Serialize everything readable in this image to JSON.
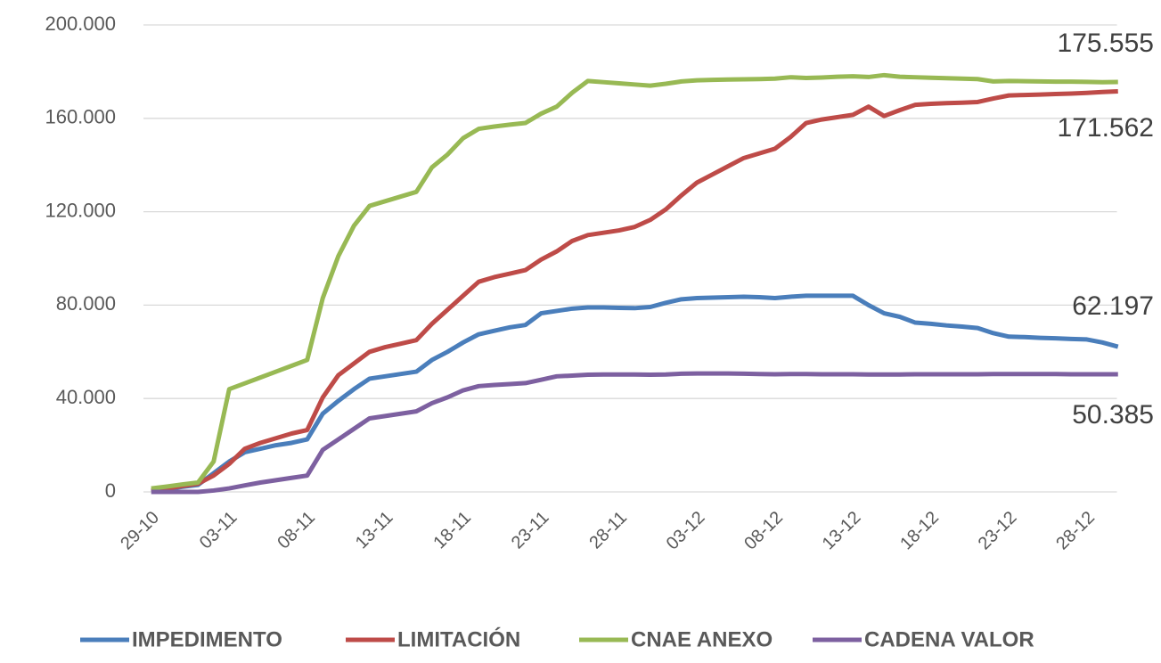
{
  "chart_data": {
    "type": "line",
    "categories": [
      "29-10",
      null,
      null,
      null,
      null,
      "03-11",
      null,
      null,
      null,
      null,
      "08-11",
      null,
      null,
      null,
      null,
      "13-11",
      null,
      null,
      null,
      null,
      "18-11",
      null,
      null,
      null,
      null,
      "23-11",
      null,
      null,
      null,
      null,
      "28-11",
      null,
      null,
      null,
      null,
      "03-12",
      null,
      null,
      null,
      null,
      "08-12",
      null,
      null,
      null,
      null,
      "13-12",
      null,
      null,
      null,
      null,
      "18-12",
      null,
      null,
      null,
      null,
      "23-12",
      null,
      null,
      null,
      null,
      "28-12",
      null,
      null
    ],
    "ylim": [
      0,
      200000
    ],
    "yticks": [
      0,
      {
        "value": 40000,
        "label": "40.000"
      },
      {
        "value": 80000,
        "label": "80.000"
      },
      {
        "value": 120000,
        "label": "120.000"
      },
      {
        "value": 160000,
        "label": "160.000"
      },
      {
        "value": 200000,
        "label": "200.000"
      }
    ],
    "grid": true,
    "legend": "bottom",
    "series": [
      {
        "name": "IMPEDIMENTO",
        "color": "#4a7ebb",
        "end_label": "62.197",
        "values": [
          500,
          1300,
          2200,
          3000,
          8000,
          13000,
          17000,
          18500,
          20000,
          21000,
          22500,
          33500,
          39000,
          44000,
          48500,
          49500,
          50500,
          51500,
          56500,
          60000,
          64000,
          67500,
          69000,
          70500,
          71500,
          76500,
          77500,
          78500,
          79000,
          79000,
          78800,
          78700,
          79200,
          81000,
          82500,
          83000,
          83200,
          83400,
          83600,
          83400,
          83000,
          83600,
          84000,
          84000,
          84000,
          84000,
          80000,
          76500,
          75000,
          72500,
          72000,
          71300,
          70800,
          70200,
          68000,
          66500,
          66300,
          66000,
          65800,
          65500,
          65300,
          64000,
          62197
        ]
      },
      {
        "name": "LIMITACIÓN",
        "color": "#be4b48",
        "end_label": "171.562",
        "values": [
          500,
          1500,
          2500,
          3500,
          7000,
          12000,
          18500,
          21000,
          23000,
          25000,
          26500,
          40500,
          50000,
          55000,
          60000,
          62000,
          63500,
          65000,
          72000,
          78000,
          84000,
          90000,
          92000,
          93500,
          95000,
          99500,
          103000,
          107500,
          110000,
          111000,
          112000,
          113500,
          116500,
          121000,
          127000,
          132500,
          136000,
          139500,
          143000,
          145000,
          147000,
          152000,
          158000,
          159500,
          160500,
          161500,
          165000,
          161000,
          163500,
          165800,
          166200,
          166500,
          166700,
          167000,
          168500,
          169800,
          170000,
          170200,
          170400,
          170600,
          170900,
          171300,
          171562
        ]
      },
      {
        "name": "CNAE ANEXO",
        "color": "#98b954",
        "end_label": "175.555",
        "values": [
          1500,
          2300,
          3200,
          4000,
          13000,
          44000,
          46500,
          49000,
          51500,
          54000,
          56500,
          83000,
          101000,
          114000,
          122500,
          124500,
          126500,
          128500,
          139000,
          144500,
          151500,
          155500,
          156500,
          157300,
          158000,
          162000,
          165000,
          171000,
          176000,
          175500,
          175000,
          174500,
          174000,
          174800,
          175800,
          176300,
          176500,
          176600,
          176700,
          176800,
          177000,
          177600,
          177300,
          177500,
          177800,
          178000,
          177700,
          178500,
          177800,
          177600,
          177400,
          177200,
          177000,
          176800,
          175800,
          176000,
          175900,
          175800,
          175700,
          175700,
          175600,
          175500,
          175555
        ]
      },
      {
        "name": "CADENA VALOR",
        "color": "#7d60a0",
        "end_label": "50.385",
        "values": [
          0,
          0,
          0,
          0,
          600,
          1500,
          2800,
          4000,
          5000,
          6000,
          7000,
          18000,
          22500,
          27000,
          31500,
          32500,
          33500,
          34500,
          38000,
          40500,
          43500,
          45300,
          45800,
          46200,
          46600,
          48000,
          49500,
          49800,
          50200,
          50300,
          50300,
          50300,
          50200,
          50300,
          50600,
          50700,
          50700,
          50700,
          50600,
          50500,
          50400,
          50500,
          50500,
          50400,
          50400,
          50400,
          50300,
          50300,
          50300,
          50400,
          50400,
          50400,
          50400,
          50400,
          50500,
          50500,
          50500,
          50500,
          50500,
          50400,
          50400,
          50400,
          50385
        ]
      }
    ]
  }
}
